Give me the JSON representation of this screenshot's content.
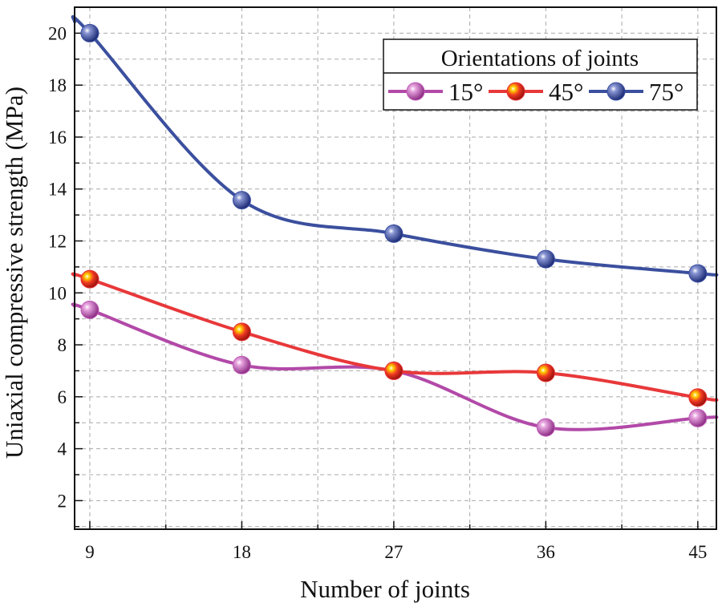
{
  "chart_data": {
    "type": "line",
    "title": "",
    "xlabel": "Number of joints",
    "ylabel": "Uniaxial compressive strength (MPa)",
    "x": [
      9,
      18,
      27,
      36,
      45
    ],
    "xticks": [
      9,
      18,
      27,
      36,
      45
    ],
    "yticks": [
      2,
      4,
      6,
      8,
      10,
      12,
      14,
      16,
      18,
      20
    ],
    "xlim": [
      8.1,
      46.1
    ],
    "ylim": [
      0.9,
      21.0
    ],
    "grid": true,
    "legend": {
      "title": "Orientations of joints",
      "position": "top-right"
    },
    "series": [
      {
        "name": "15°",
        "color": "#b249a8",
        "marker_color": "#c25bb8",
        "values": [
          9.35,
          7.22,
          7.0,
          4.82,
          5.18
        ]
      },
      {
        "name": "45°",
        "color": "#e8383a",
        "marker_color": "#e8302e",
        "values": [
          10.53,
          8.5,
          7.0,
          6.92,
          5.97
        ]
      },
      {
        "name": "75°",
        "color": "#3b4f9e",
        "marker_color": "#3a4fa3",
        "values": [
          20.0,
          13.57,
          12.28,
          11.3,
          10.75
        ]
      }
    ]
  }
}
